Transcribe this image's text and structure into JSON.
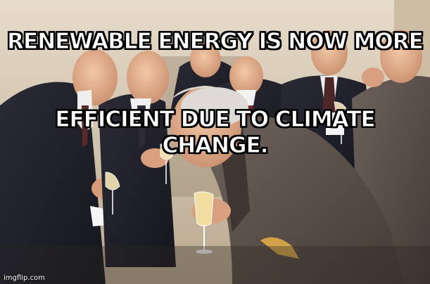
{
  "meme": {
    "caption_line1": "RENEWABLE ENERGY IS NOW MORE",
    "caption_line2": "EFFICIENT DUE TO CLIMATE CHANGE.",
    "watermark": "imgflip.com"
  },
  "colors": {
    "caption_fill": "#ffffff",
    "caption_outline": "#000000",
    "wall": "#d7c7ad",
    "suit_dark": "#1e1f28",
    "suit_brown": "#5a4e47"
  }
}
